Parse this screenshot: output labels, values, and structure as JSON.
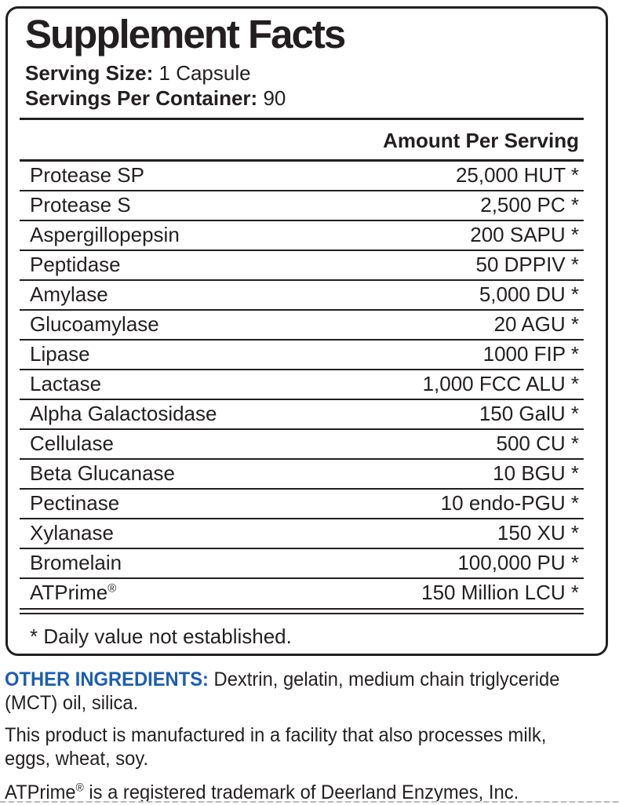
{
  "colors": {
    "text": "#231f20",
    "accent_blue": "#1c5db4",
    "background": "#ffffff"
  },
  "panel": {
    "title": "Supplement Facts",
    "serving_size": {
      "label": "Serving Size:",
      "value": "1 Capsule"
    },
    "servings_per_container": {
      "label": "Servings Per Container:",
      "value": "90"
    },
    "amount_header": "Amount Per Serving",
    "rows": [
      {
        "name": "Protease SP",
        "amount": "25,000 HUT *"
      },
      {
        "name": "Protease S",
        "amount": "2,500 PC *"
      },
      {
        "name": "Aspergillopepsin",
        "amount": "200 SAPU *"
      },
      {
        "name": "Peptidase",
        "amount": "50 DPPIV *"
      },
      {
        "name": "Amylase",
        "amount": "5,000 DU *"
      },
      {
        "name": "Glucoamylase",
        "amount": "20 AGU *"
      },
      {
        "name": "Lipase",
        "amount": "1000 FIP *"
      },
      {
        "name": "Lactase",
        "amount": "1,000 FCC ALU *"
      },
      {
        "name": "Alpha Galactosidase",
        "amount": "150 GalU *"
      },
      {
        "name": "Cellulase",
        "amount": "500 CU *"
      },
      {
        "name": "Beta Glucanase",
        "amount": "10 BGU *"
      },
      {
        "name": "Pectinase",
        "amount": "10 endo-PGU *"
      },
      {
        "name": "Xylanase",
        "amount": "150 XU *"
      },
      {
        "name": "Bromelain",
        "amount": "100,000 PU *"
      },
      {
        "name": "ATPrime",
        "reg": "®",
        "amount": "150 Million LCU *"
      }
    ],
    "footnote": "* Daily value not established."
  },
  "footer": {
    "other_ingredients": {
      "label": "OTHER INGREDIENTS:",
      "line1_rest": "Dextrin, gelatin, medium chain triglyceride",
      "line2": "(MCT) oil, silica."
    },
    "facility_note": {
      "line1": "This product is manufactured in a facility that also processes milk,",
      "line2": "eggs, wheat, soy."
    },
    "trademark": {
      "brand": "ATPrime",
      "reg": "®",
      "rest": " is a registered trademark of Deerland Enzymes, Inc."
    }
  }
}
